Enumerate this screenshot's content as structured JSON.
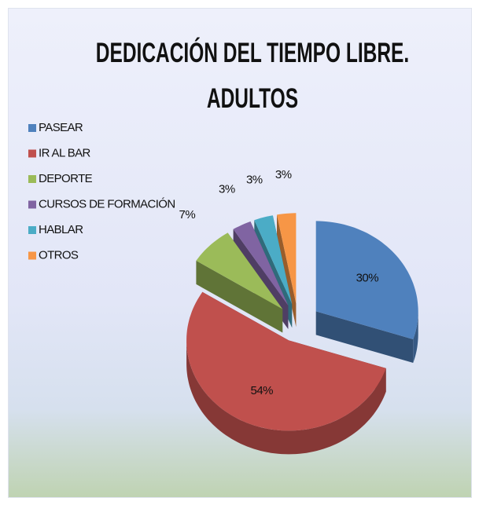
{
  "chart_data": {
    "type": "pie3d",
    "title": "DEDICACIÓN DEL TIEMPO LIBRE. ADULTOS",
    "categories": [
      "PASEAR",
      "IR AL BAR",
      "DEPORTE",
      "CURSOS DE FORMACIÓN",
      "HABLAR",
      "OTROS"
    ],
    "values": [
      30,
      54,
      7,
      3,
      3,
      3
    ],
    "value_labels": [
      "30%",
      "54%",
      "7%",
      "3%",
      "3%",
      "3%"
    ],
    "colors": [
      "#4f81bd",
      "#c0504d",
      "#9bbb59",
      "#8064a2",
      "#4bacc6",
      "#f79646"
    ],
    "legend": "top-left"
  }
}
